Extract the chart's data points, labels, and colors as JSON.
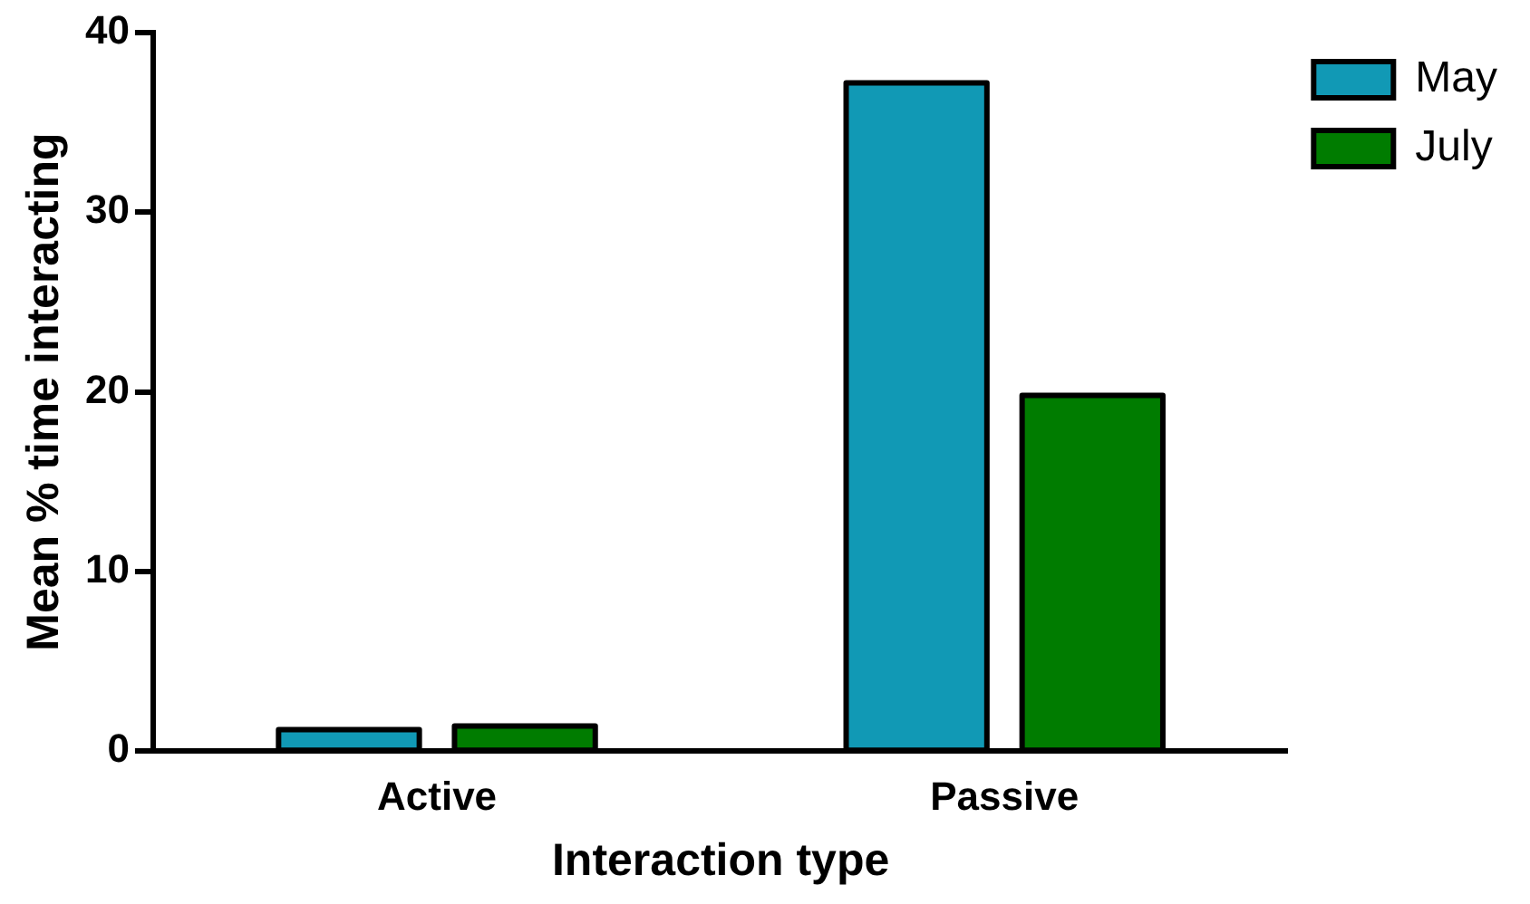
{
  "chart_data": {
    "type": "bar",
    "xlabel": "Interaction type",
    "ylabel": "Mean % time interacting",
    "categories": [
      "Active",
      "Passive"
    ],
    "series": [
      {
        "name": "May",
        "color": "#1199b5",
        "values": [
          1.2,
          37.2
        ]
      },
      {
        "name": "July",
        "color": "#007c00",
        "values": [
          1.4,
          19.8
        ]
      }
    ],
    "ylim": [
      0,
      40
    ],
    "yticks": [
      0,
      10,
      20,
      30,
      40
    ],
    "grid": false,
    "legend": "top right"
  }
}
